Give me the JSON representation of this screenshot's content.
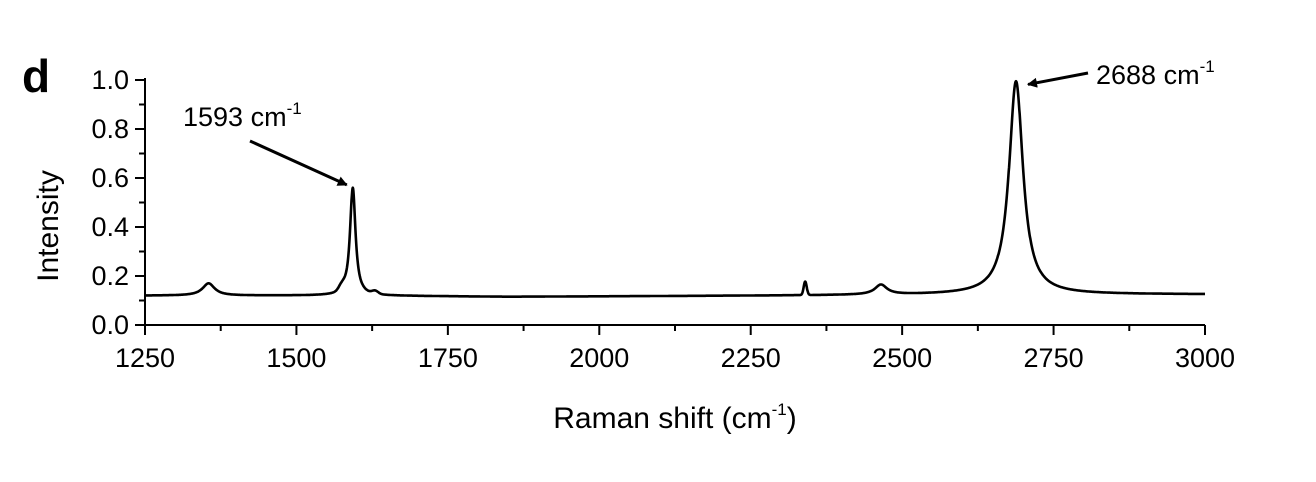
{
  "chart_data": {
    "type": "line",
    "panel_label": "d",
    "xlabel": {
      "main": "Raman shift (cm",
      "sup": "-1",
      "tail": ")"
    },
    "ylabel": "Intensity",
    "xlim": [
      1250,
      3000
    ],
    "ylim": [
      0.0,
      1.0
    ],
    "x_ticks": [
      1250,
      1500,
      1750,
      2000,
      2250,
      2500,
      2750,
      3000
    ],
    "x_tick_labels": [
      "1250",
      "1500",
      "1750",
      "2000",
      "2250",
      "2500",
      "2750",
      "3000"
    ],
    "x_minor_ticks": [
      1375,
      1625,
      1875,
      2125,
      2375,
      2625,
      2875
    ],
    "y_ticks": [
      0.0,
      0.2,
      0.4,
      0.6,
      0.8,
      1.0
    ],
    "y_tick_labels": [
      "0.0",
      "0.2",
      "0.4",
      "0.6",
      "0.8",
      "1.0"
    ],
    "y_minor_ticks": [
      0.1,
      0.3,
      0.5,
      0.7,
      0.9
    ],
    "grid": false,
    "series": [
      {
        "color": "#000000",
        "baseline": [
          [
            1250,
            0.12
          ],
          [
            1600,
            0.12
          ],
          [
            1850,
            0.115
          ],
          [
            2300,
            0.12
          ],
          [
            2700,
            0.125
          ],
          [
            3000,
            0.125
          ]
        ],
        "peaks": [
          {
            "center": 1355,
            "height": 0.05,
            "width": 12,
            "shape": "lorentz"
          },
          {
            "center": 1575,
            "height": 0.02,
            "width": 5,
            "shape": "gauss"
          },
          {
            "center": 1593,
            "height": 0.44,
            "width": 5.5,
            "shape": "lorentz"
          },
          {
            "center": 1630,
            "height": 0.012,
            "width": 5,
            "shape": "gauss"
          },
          {
            "center": 2340,
            "height": 0.055,
            "width": 2.5,
            "shape": "gauss"
          },
          {
            "center": 2465,
            "height": 0.04,
            "width": 12,
            "shape": "lorentz"
          },
          {
            "center": 2688,
            "height": 0.87,
            "width": 14,
            "shape": "lorentz"
          }
        ]
      }
    ],
    "annotations": [
      {
        "text": "1593 cm",
        "sup": "-1",
        "target_x": 1593,
        "target_y": 0.58
      },
      {
        "text": "2688 cm",
        "sup": "-1",
        "target_x": 2688,
        "target_y": 0.99
      }
    ]
  }
}
